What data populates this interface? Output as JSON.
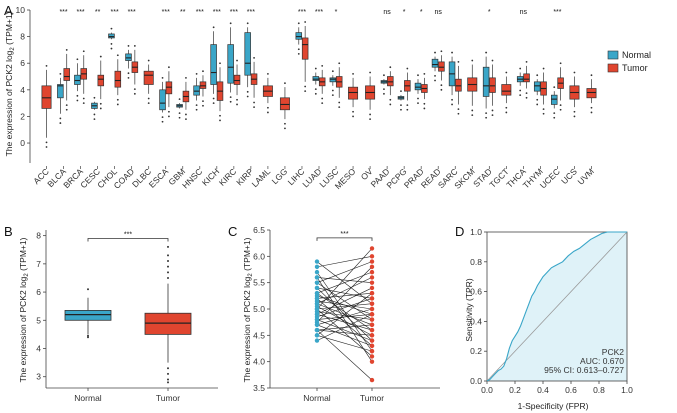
{
  "colors": {
    "normal": "#3aa6c8",
    "tumor": "#e0452f",
    "roc_line": "#3aa6c8",
    "roc_fill": "#dff2f8",
    "diag": "#999999"
  },
  "chart_data": [
    {
      "panel": "A",
      "type": "box",
      "ylabel_parts": [
        "The expression of PCK2 log",
        "2",
        " (TPM+1)"
      ],
      "ylim": [
        -1.5,
        10
      ],
      "yticks": [
        0,
        2,
        4,
        6,
        8,
        10
      ],
      "legend": {
        "position": "right",
        "items": [
          "Normal",
          "Tumor"
        ]
      },
      "categories": [
        {
          "name": "ACC",
          "sig": "",
          "tumor": {
            "q1": 2.6,
            "med": 3.4,
            "q3": 4.3,
            "lo": 0.4,
            "hi": 5.5
          }
        },
        {
          "name": "BLCA",
          "sig": "***",
          "normal": {
            "q1": 3.4,
            "med": 4.3,
            "q3": 4.4,
            "lo": 2.2,
            "hi": 4.9
          },
          "tumor": {
            "q1": 4.7,
            "med": 5.0,
            "q3": 5.6,
            "lo": 3.2,
            "hi": 6.7
          }
        },
        {
          "name": "BRCA",
          "sig": "***",
          "normal": {
            "q1": 4.4,
            "med": 4.7,
            "q3": 5.1,
            "lo": 3.9,
            "hi": 6.0
          },
          "tumor": {
            "q1": 4.8,
            "med": 5.2,
            "q3": 5.6,
            "lo": 3.7,
            "hi": 6.6
          }
        },
        {
          "name": "CESC",
          "sig": "**",
          "normal": {
            "q1": 2.6,
            "med": 2.8,
            "q3": 3.0,
            "lo": 2.5,
            "hi": 3.1
          },
          "tumor": {
            "q1": 4.3,
            "med": 4.8,
            "q3": 5.1,
            "lo": 3.3,
            "hi": 6.2
          }
        },
        {
          "name": "CHOL",
          "sig": "***",
          "normal": {
            "q1": 7.9,
            "med": 8.0,
            "q3": 8.2,
            "lo": 7.8,
            "hi": 8.3
          },
          "tumor": {
            "q1": 4.2,
            "med": 4.7,
            "q3": 5.4,
            "lo": 3.6,
            "hi": 6.3
          }
        },
        {
          "name": "COAD",
          "sig": "***",
          "normal": {
            "q1": 6.2,
            "med": 6.4,
            "q3": 6.7,
            "lo": 5.6,
            "hi": 7.0
          },
          "tumor": {
            "q1": 5.3,
            "med": 5.7,
            "q3": 6.1,
            "lo": 4.4,
            "hi": 7.0
          }
        },
        {
          "name": "DLBC",
          "sig": "",
          "tumor": {
            "q1": 4.4,
            "med": 5.1,
            "q3": 5.4,
            "lo": 3.7,
            "hi": 5.9
          }
        },
        {
          "name": "ESCA",
          "sig": "***",
          "normal": {
            "q1": 2.5,
            "med": 3.0,
            "q3": 4.0,
            "lo": 2.3,
            "hi": 4.6
          },
          "tumor": {
            "q1": 3.7,
            "med": 4.2,
            "q3": 4.6,
            "lo": 2.7,
            "hi": 5.4
          }
        },
        {
          "name": "GBM",
          "sig": "**",
          "normal": {
            "q1": 2.7,
            "med": 2.8,
            "q3": 2.9,
            "lo": 2.6,
            "hi": 3.0
          },
          "tumor": {
            "q1": 3.1,
            "med": 3.5,
            "q3": 3.9,
            "lo": 2.5,
            "hi": 4.6
          }
        },
        {
          "name": "HNSC",
          "sig": "***",
          "normal": {
            "q1": 3.6,
            "med": 3.9,
            "q3": 4.3,
            "lo": 3.2,
            "hi": 4.9
          },
          "tumor": {
            "q1": 4.1,
            "med": 4.3,
            "q3": 4.6,
            "lo": 3.5,
            "hi": 5.1
          }
        },
        {
          "name": "KICH",
          "sig": "***",
          "normal": {
            "q1": 4.4,
            "med": 5.3,
            "q3": 7.4,
            "lo": 3.7,
            "hi": 8.4
          },
          "tumor": {
            "q1": 3.2,
            "med": 3.9,
            "q3": 4.6,
            "lo": 2.4,
            "hi": 5.7
          }
        },
        {
          "name": "KIRC",
          "sig": "***",
          "normal": {
            "q1": 4.5,
            "med": 5.7,
            "q3": 7.4,
            "lo": 3.8,
            "hi": 8.7
          },
          "tumor": {
            "q1": 4.4,
            "med": 4.7,
            "q3": 5.1,
            "lo": 3.6,
            "hi": 5.9
          }
        },
        {
          "name": "KIRP",
          "sig": "***",
          "normal": {
            "q1": 5.1,
            "med": 6.0,
            "q3": 8.3,
            "lo": 4.2,
            "hi": 8.7
          },
          "tumor": {
            "q1": 4.4,
            "med": 4.8,
            "q3": 5.2,
            "lo": 3.4,
            "hi": 6.1
          }
        },
        {
          "name": "LAML",
          "sig": "",
          "tumor": {
            "q1": 3.5,
            "med": 3.9,
            "q3": 4.3,
            "lo": 3.0,
            "hi": 4.9
          }
        },
        {
          "name": "LGG",
          "sig": "",
          "tumor": {
            "q1": 2.5,
            "med": 2.9,
            "q3": 3.4,
            "lo": 1.8,
            "hi": 4.2
          }
        },
        {
          "name": "LIHC",
          "sig": "***",
          "normal": {
            "q1": 7.8,
            "med": 8.0,
            "q3": 8.3,
            "lo": 7.4,
            "hi": 8.7
          },
          "tumor": {
            "q1": 6.3,
            "med": 7.4,
            "q3": 7.9,
            "lo": 4.6,
            "hi": 8.8
          }
        },
        {
          "name": "LUAD",
          "sig": "***",
          "normal": {
            "q1": 4.7,
            "med": 4.8,
            "q3": 5.0,
            "lo": 4.4,
            "hi": 5.3
          },
          "tumor": {
            "q1": 4.3,
            "med": 4.6,
            "q3": 4.9,
            "lo": 3.7,
            "hi": 5.5
          }
        },
        {
          "name": "LUSC",
          "sig": "*",
          "normal": {
            "q1": 4.6,
            "med": 4.8,
            "q3": 4.9,
            "lo": 4.3,
            "hi": 5.1
          },
          "tumor": {
            "q1": 4.2,
            "med": 4.6,
            "q3": 5.0,
            "lo": 3.4,
            "hi": 5.7
          }
        },
        {
          "name": "MESO",
          "sig": "",
          "tumor": {
            "q1": 3.3,
            "med": 3.8,
            "q3": 4.2,
            "lo": 2.7,
            "hi": 4.9
          }
        },
        {
          "name": "OV",
          "sig": "",
          "tumor": {
            "q1": 3.3,
            "med": 3.8,
            "q3": 4.3,
            "lo": 2.5,
            "hi": 5.0
          }
        },
        {
          "name": "PAAD",
          "sig": "ns",
          "normal": {
            "q1": 4.5,
            "med": 4.6,
            "q3": 4.7,
            "lo": 4.4,
            "hi": 4.8
          },
          "tumor": {
            "q1": 4.3,
            "med": 4.6,
            "q3": 5.0,
            "lo": 3.6,
            "hi": 5.4
          }
        },
        {
          "name": "PCPG",
          "sig": "*",
          "normal": {
            "q1": 3.3,
            "med": 3.4,
            "q3": 3.5,
            "lo": 3.2,
            "hi": 3.6
          },
          "tumor": {
            "q1": 3.9,
            "med": 4.3,
            "q3": 4.7,
            "lo": 3.2,
            "hi": 5.3
          }
        },
        {
          "name": "PRAD",
          "sig": "*",
          "normal": {
            "q1": 4.0,
            "med": 4.2,
            "q3": 4.5,
            "lo": 3.7,
            "hi": 4.8
          },
          "tumor": {
            "q1": 3.8,
            "med": 4.1,
            "q3": 4.4,
            "lo": 3.3,
            "hi": 4.9
          }
        },
        {
          "name": "READ",
          "sig": "ns",
          "normal": {
            "q1": 5.7,
            "med": 5.9,
            "q3": 6.3,
            "lo": 5.4,
            "hi": 6.5
          },
          "tumor": {
            "q1": 5.4,
            "med": 5.7,
            "q3": 6.1,
            "lo": 4.7,
            "hi": 6.6
          }
        },
        {
          "name": "SARC",
          "sig": "",
          "normal": {
            "q1": 4.3,
            "med": 5.2,
            "q3": 6.1,
            "lo": 3.6,
            "hi": 6.5
          },
          "tumor": {
            "q1": 3.9,
            "med": 4.3,
            "q3": 4.8,
            "lo": 2.9,
            "hi": 5.8
          }
        },
        {
          "name": "SKCM",
          "sig": "",
          "tumor": {
            "q1": 3.9,
            "med": 4.4,
            "q3": 4.9,
            "lo": 2.8,
            "hi": 5.9
          }
        },
        {
          "name": "STAD",
          "sig": "*",
          "normal": {
            "q1": 3.5,
            "med": 4.3,
            "q3": 5.7,
            "lo": 2.6,
            "hi": 6.5
          },
          "tumor": {
            "q1": 3.8,
            "med": 4.3,
            "q3": 4.9,
            "lo": 2.8,
            "hi": 5.9
          }
        },
        {
          "name": "TGCT",
          "sig": "",
          "tumor": {
            "q1": 3.6,
            "med": 3.9,
            "q3": 4.4,
            "lo": 3.0,
            "hi": 5.0
          }
        },
        {
          "name": "THCA",
          "sig": "ns",
          "normal": {
            "q1": 4.6,
            "med": 4.8,
            "q3": 5.0,
            "lo": 4.3,
            "hi": 5.3
          },
          "tumor": {
            "q1": 4.6,
            "med": 4.8,
            "q3": 5.2,
            "lo": 4.1,
            "hi": 5.8
          }
        },
        {
          "name": "THYM",
          "sig": "",
          "normal": {
            "q1": 3.9,
            "med": 4.3,
            "q3": 4.6,
            "lo": 3.6,
            "hi": 4.8
          },
          "tumor": {
            "q1": 3.6,
            "med": 4.1,
            "q3": 4.6,
            "lo": 2.9,
            "hi": 5.3
          }
        },
        {
          "name": "UCEC",
          "sig": "***",
          "normal": {
            "q1": 2.9,
            "med": 3.3,
            "q3": 3.6,
            "lo": 2.6,
            "hi": 3.9
          },
          "tumor": {
            "q1": 4.1,
            "med": 4.5,
            "q3": 4.9,
            "lo": 3.2,
            "hi": 5.7
          }
        },
        {
          "name": "UCS",
          "sig": "",
          "tumor": {
            "q1": 3.3,
            "med": 3.8,
            "q3": 4.3,
            "lo": 2.7,
            "hi": 5.0
          }
        },
        {
          "name": "UVM",
          "sig": "",
          "tumor": {
            "q1": 3.4,
            "med": 3.8,
            "q3": 4.1,
            "lo": 3.0,
            "hi": 4.8
          }
        }
      ]
    },
    {
      "panel": "B",
      "type": "box",
      "ylabel_parts": [
        "The expression of PCK2 log",
        "2",
        " (TPM+1)"
      ],
      "ylim": [
        2.6,
        8.2
      ],
      "yticks": [
        3,
        4,
        5,
        6,
        7,
        8
      ],
      "categories": [
        "Normal",
        "Tumor"
      ],
      "sig": "***",
      "boxes": [
        {
          "group": "Normal",
          "q1": 5.0,
          "med": 5.2,
          "q3": 5.35,
          "lo": 4.5,
          "hi": 5.8,
          "outliers": [
            4.4,
            4.45,
            6.1
          ]
        },
        {
          "group": "Tumor",
          "q1": 4.5,
          "med": 4.9,
          "q3": 5.25,
          "lo": 3.5,
          "hi": 6.3,
          "outliers": [
            6.5,
            6.7,
            6.9,
            7.1,
            7.3,
            7.6,
            3.3,
            3.1,
            2.9,
            2.8
          ]
        }
      ]
    },
    {
      "panel": "C",
      "type": "paired-line",
      "ylabel_parts": [
        "The expression of PCK2 log",
        "2",
        " (TPM+1)"
      ],
      "ylim": [
        3.5,
        6.5
      ],
      "yticks": [
        3.5,
        4.0,
        4.5,
        5.0,
        5.5,
        6.0,
        6.5
      ],
      "categories": [
        "Normal",
        "Tumor"
      ],
      "sig": "***",
      "pairs": [
        [
          5.9,
          5.1
        ],
        [
          5.8,
          6.0
        ],
        [
          5.7,
          4.2
        ],
        [
          5.6,
          5.5
        ],
        [
          5.5,
          4.8
        ],
        [
          5.5,
          5.9
        ],
        [
          5.4,
          4.4
        ],
        [
          5.4,
          5.2
        ],
        [
          5.3,
          4.6
        ],
        [
          5.3,
          5.7
        ],
        [
          5.25,
          4.9
        ],
        [
          5.2,
          5.3
        ],
        [
          5.2,
          4.3
        ],
        [
          5.15,
          5.0
        ],
        [
          5.1,
          4.7
        ],
        [
          5.1,
          5.6
        ],
        [
          5.05,
          4.5
        ],
        [
          5.0,
          5.1
        ],
        [
          5.0,
          4.1
        ],
        [
          4.95,
          4.8
        ],
        [
          4.9,
          5.4
        ],
        [
          4.9,
          4.6
        ],
        [
          4.85,
          5.2
        ],
        [
          4.8,
          4.4
        ],
        [
          4.8,
          4.9
        ],
        [
          4.75,
          5.8
        ],
        [
          4.7,
          4.3
        ],
        [
          4.7,
          5.0
        ],
        [
          4.6,
          4.7
        ],
        [
          4.6,
          4.5
        ],
        [
          4.5,
          5.3
        ],
        [
          4.5,
          4.2
        ],
        [
          4.4,
          4.9
        ],
        [
          5.6,
          4.0
        ],
        [
          5.0,
          6.15
        ],
        [
          4.6,
          3.65
        ]
      ]
    },
    {
      "panel": "D",
      "type": "line",
      "xlabel": "1-Specificity (FPR)",
      "ylabel": "Sensitivity (TPR)",
      "xlim": [
        0,
        1
      ],
      "ylim": [
        0,
        1
      ],
      "xticks": [
        0.0,
        0.2,
        0.4,
        0.6,
        0.8,
        1.0
      ],
      "yticks": [
        0.0,
        0.2,
        0.4,
        0.6,
        0.8,
        1.0
      ],
      "annotation": [
        "PCK2",
        "AUC: 0.670",
        "95% CI: 0.613–0.727"
      ],
      "roc": [
        [
          0,
          0
        ],
        [
          0.02,
          0.01
        ],
        [
          0.04,
          0.03
        ],
        [
          0.06,
          0.05
        ],
        [
          0.08,
          0.07
        ],
        [
          0.1,
          0.08
        ],
        [
          0.12,
          0.1
        ],
        [
          0.14,
          0.15
        ],
        [
          0.16,
          0.22
        ],
        [
          0.18,
          0.27
        ],
        [
          0.2,
          0.3
        ],
        [
          0.22,
          0.33
        ],
        [
          0.24,
          0.37
        ],
        [
          0.26,
          0.42
        ],
        [
          0.28,
          0.47
        ],
        [
          0.3,
          0.52
        ],
        [
          0.32,
          0.57
        ],
        [
          0.34,
          0.6
        ],
        [
          0.36,
          0.64
        ],
        [
          0.38,
          0.67
        ],
        [
          0.4,
          0.7
        ],
        [
          0.42,
          0.72
        ],
        [
          0.44,
          0.74
        ],
        [
          0.46,
          0.76
        ],
        [
          0.48,
          0.77
        ],
        [
          0.5,
          0.78
        ],
        [
          0.54,
          0.8
        ],
        [
          0.58,
          0.84
        ],
        [
          0.62,
          0.87
        ],
        [
          0.66,
          0.89
        ],
        [
          0.7,
          0.92
        ],
        [
          0.74,
          0.95
        ],
        [
          0.78,
          0.97
        ],
        [
          0.82,
          0.99
        ],
        [
          0.86,
          1.0
        ],
        [
          1.0,
          1.0
        ]
      ]
    }
  ]
}
